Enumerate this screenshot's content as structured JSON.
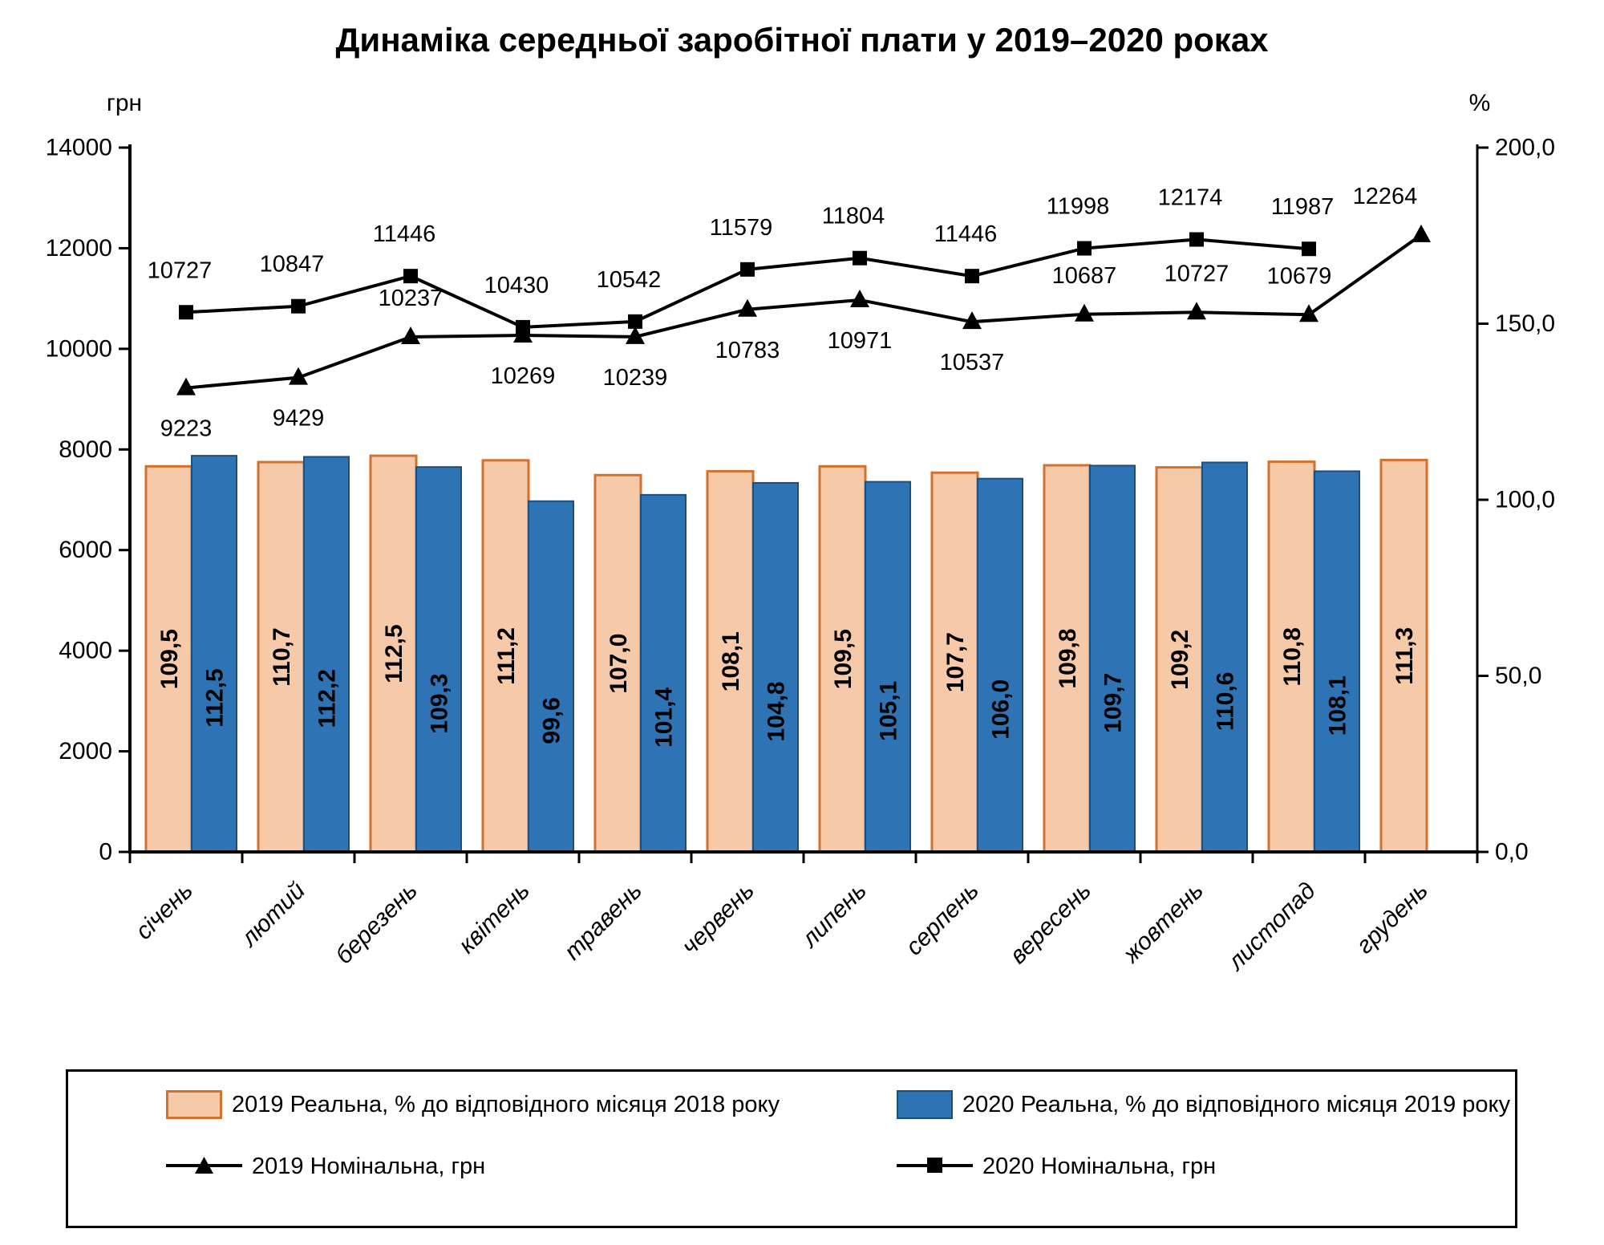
{
  "title": "Динаміка середньої заробітної плати у 2019–2020 роках",
  "chart_data": {
    "type": "combo",
    "title": "Динаміка середньої заробітної плати у 2019–2020 роках",
    "categories": [
      "січень",
      "лютий",
      "березень",
      "квітень",
      "травень",
      "червень",
      "липень",
      "серпень",
      "вересень",
      "жовтень",
      "листопад",
      "грудень"
    ],
    "left_axis": {
      "unit": "грн",
      "max": 14000,
      "min": 0,
      "ticks": [
        "14000",
        "12000",
        "10000",
        "8000",
        "6000",
        "4000",
        "2000",
        "0"
      ]
    },
    "right_axis": {
      "unit": "%",
      "max": 200,
      "min": 0,
      "ticks": [
        "200,0",
        "150,0",
        "100,0",
        "50,0",
        "0,0"
      ]
    },
    "grid": "off",
    "legend_position": "bottom-box",
    "series": [
      {
        "id": "real2019",
        "name": "2019 Реальна, % до відповідного місяця 2018 року",
        "type": "bar",
        "axis": "right",
        "fill": "#F6C9A9",
        "stroke": "#D2722E",
        "values": [
          109.5,
          110.7,
          112.5,
          111.2,
          107.0,
          108.1,
          109.5,
          107.7,
          109.8,
          109.2,
          110.8,
          111.3
        ],
        "labels": [
          "109,5",
          "110,7",
          "112,5",
          "111,2",
          "107,0",
          "108,1",
          "109,5",
          "107,7",
          "109,8",
          "109,2",
          "110,8",
          "111,3"
        ]
      },
      {
        "id": "real2020",
        "name": "2020 Реальна, % до відповідного місяця 2019 року",
        "type": "bar",
        "axis": "right",
        "fill": "#2E74B5",
        "stroke": "#1F4E79",
        "values": [
          112.5,
          112.2,
          109.3,
          99.6,
          101.4,
          104.8,
          105.1,
          106.0,
          109.7,
          110.6,
          108.1
        ],
        "labels": [
          "112,5",
          "112,2",
          "109,3",
          "99,6",
          "101,4",
          "104,8",
          "105,1",
          "106,0",
          "109,7",
          "110,6",
          "108,1"
        ]
      },
      {
        "id": "nom2019",
        "name": "2019 Номінальна, грн",
        "type": "line",
        "axis": "left",
        "marker": "triangle",
        "color": "#000000",
        "values": [
          9223,
          9429,
          10237,
          10269,
          10239,
          10783,
          10971,
          10537,
          10687,
          10727,
          10679,
          12264
        ],
        "labels": [
          "9223",
          "9429",
          "10237",
          "10269",
          "10239",
          "10783",
          "10971",
          "10537",
          "10687",
          "10727",
          "10679",
          "12264"
        ],
        "label_pos": [
          "below",
          "below",
          "above",
          "below",
          "below",
          "below",
          "below",
          "below",
          "above",
          "above",
          "above",
          "above"
        ],
        "label_dx": [
          0,
          0,
          0,
          0,
          0,
          0,
          0,
          0,
          0,
          0,
          -12,
          -45
        ]
      },
      {
        "id": "nom2020",
        "name": "2020 Номінальна, грн",
        "type": "line",
        "axis": "left",
        "marker": "square",
        "color": "#000000",
        "values": [
          10727,
          10847,
          11446,
          10430,
          10542,
          11579,
          11804,
          11446,
          11998,
          12174,
          11987
        ],
        "labels": [
          "10727",
          "10847",
          "11446",
          "10430",
          "10542",
          "11579",
          "11804",
          "11446",
          "11998",
          "12174",
          "11987"
        ]
      }
    ]
  }
}
